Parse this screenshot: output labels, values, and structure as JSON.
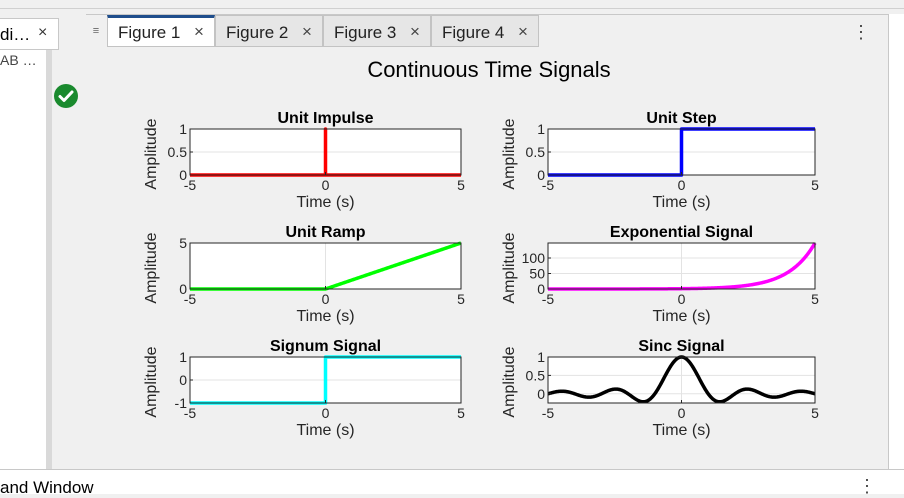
{
  "left_panel": {
    "tab_label": "di…",
    "close_glyph": "×",
    "sub_label": "AB …",
    "status_icon": "check-circle-icon"
  },
  "tabs": [
    {
      "label": "Figure 1",
      "active": true
    },
    {
      "label": "Figure 2",
      "active": false
    },
    {
      "label": "Figure 3",
      "active": false
    },
    {
      "label": "Figure 4",
      "active": false
    }
  ],
  "tab_close_glyph": "×",
  "menu_glyph": "⋮",
  "bottom_bar": {
    "label": "and Window",
    "menu_glyph": "⋮"
  },
  "colors": {
    "accent": "#1f4e8c",
    "status_green": "#1a8a2e"
  },
  "chart_data": {
    "title": "Continuous Time Signals",
    "subplots": [
      {
        "type": "line",
        "title": "Unit Impulse",
        "xlabel": "Time (s)",
        "ylabel": "Amplitude",
        "xlim": [
          -5,
          5
        ],
        "ylim": [
          0,
          1
        ],
        "xticks": [
          -5,
          0,
          5
        ],
        "yticks": [
          0,
          0.5,
          1
        ],
        "yticklabels": [
          "0",
          "0.5",
          "1"
        ],
        "color": "#ff0000",
        "signal": "impulse",
        "grid": true
      },
      {
        "type": "line",
        "title": "Unit Step",
        "xlabel": "Time (s)",
        "ylabel": "Amplitude",
        "xlim": [
          -5,
          5
        ],
        "ylim": [
          0,
          1
        ],
        "xticks": [
          -5,
          0,
          5
        ],
        "yticks": [
          0,
          0.5,
          1
        ],
        "yticklabels": [
          "0",
          "0.5",
          "1"
        ],
        "color": "#0000ff",
        "signal": "step",
        "grid": true
      },
      {
        "type": "line",
        "title": "Unit Ramp",
        "xlabel": "Time (s)",
        "ylabel": "Amplitude",
        "xlim": [
          -5,
          5
        ],
        "ylim": [
          0,
          5
        ],
        "xticks": [
          -5,
          0,
          5
        ],
        "yticks": [
          0,
          5
        ],
        "yticklabels": [
          "0",
          "5"
        ],
        "color": "#00ff00",
        "signal": "ramp",
        "grid": true
      },
      {
        "type": "line",
        "title": "Exponential Signal",
        "xlabel": "Time (s)",
        "ylabel": "Amplitude",
        "xlim": [
          -5,
          5
        ],
        "ylim": [
          0,
          148.4
        ],
        "xticks": [
          -5,
          0,
          5
        ],
        "yticks": [
          0,
          50,
          100
        ],
        "yticklabels": [
          "0",
          "50",
          "100"
        ],
        "color": "#ff00ff",
        "signal": "exp",
        "grid": true
      },
      {
        "type": "line",
        "title": "Signum Signal",
        "xlabel": "Time (s)",
        "ylabel": "Amplitude",
        "xlim": [
          -5,
          5
        ],
        "ylim": [
          -1,
          1
        ],
        "xticks": [
          -5,
          0,
          5
        ],
        "yticks": [
          -1,
          0,
          1
        ],
        "yticklabels": [
          "-1",
          "0",
          "1"
        ],
        "color": "#00ffff",
        "signal": "sign",
        "grid": true
      },
      {
        "type": "line",
        "title": "Sinc Signal",
        "xlabel": "Time (s)",
        "ylabel": "Amplitude",
        "xlim": [
          -5,
          5
        ],
        "ylim": [
          -0.25,
          1
        ],
        "xticks": [
          -5,
          0,
          5
        ],
        "yticks": [
          0,
          0.5,
          1
        ],
        "yticklabels": [
          "0",
          "0.5",
          "1"
        ],
        "color": "#000000",
        "signal": "sinc",
        "grid": true
      }
    ]
  }
}
